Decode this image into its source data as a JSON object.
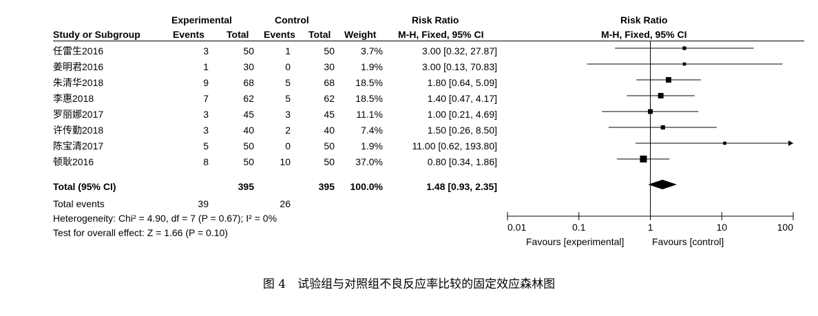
{
  "headers": {
    "experimental": "Experimental",
    "control": "Control",
    "rr_left": "Risk Ratio",
    "rr_right": "Risk Ratio",
    "study": "Study or Subgroup",
    "events_e": "Events",
    "total_e": "Total",
    "events_c": "Events",
    "total_c": "Total",
    "weight": "Weight",
    "method_left": "M-H, Fixed, 95% CI",
    "method_right": "M-H, Fixed, 95% CI"
  },
  "studies": [
    {
      "name": "任雷生2016",
      "ee": "3",
      "te": "50",
      "ec": "1",
      "tc": "50",
      "weight": "3.7%",
      "ci": "3.00 [0.32, 27.87]"
    },
    {
      "name": "姜明君2016",
      "ee": "1",
      "te": "30",
      "ec": "0",
      "tc": "30",
      "weight": "1.9%",
      "ci": "3.00 [0.13, 70.83]"
    },
    {
      "name": "朱清华2018",
      "ee": "9",
      "te": "68",
      "ec": "5",
      "tc": "68",
      "weight": "18.5%",
      "ci": "1.80 [0.64, 5.09]"
    },
    {
      "name": "李惠2018",
      "ee": "7",
      "te": "62",
      "ec": "5",
      "tc": "62",
      "weight": "18.5%",
      "ci": "1.40 [0.47, 4.17]"
    },
    {
      "name": "罗丽娜2017",
      "ee": "3",
      "te": "45",
      "ec": "3",
      "tc": "45",
      "weight": "11.1%",
      "ci": "1.00 [0.21, 4.69]"
    },
    {
      "name": "许传勤2018",
      "ee": "3",
      "te": "40",
      "ec": "2",
      "tc": "40",
      "weight": "7.4%",
      "ci": "1.50 [0.26, 8.50]"
    },
    {
      "name": "陈宝清2017",
      "ee": "5",
      "te": "50",
      "ec": "0",
      "tc": "50",
      "weight": "1.9%",
      "ci": "11.00 [0.62, 193.80]"
    },
    {
      "name": "顿耿2016",
      "ee": "8",
      "te": "50",
      "ec": "10",
      "tc": "50",
      "weight": "37.0%",
      "ci": "0.80 [0.34, 1.86]"
    }
  ],
  "total": {
    "label": "Total (95% CI)",
    "te": "395",
    "tc": "395",
    "weight": "100.0%",
    "ci": "1.48 [0.93, 2.35]"
  },
  "total_events": {
    "label": "Total events",
    "e": "39",
    "c": "26"
  },
  "heterogeneity": "Heterogeneity: Chi² = 4.90, df = 7 (P = 0.67); I² = 0%",
  "overall_effect": "Test for overall effect: Z = 1.66 (P = 0.10)",
  "favours_left": "Favours [experimental]",
  "favours_right": "Favours [control]",
  "caption": "图 4　试验组与对照组不良反应率比较的固定效应森林图",
  "chart_data": {
    "type": "scatter",
    "scale": "log",
    "xlim": [
      0.01,
      100
    ],
    "ticks": [
      0.01,
      0.1,
      1,
      10,
      100
    ],
    "tick_labels": [
      "0.01",
      "0.1",
      "1",
      "10",
      "100"
    ],
    "null_line": 1,
    "points": [
      {
        "label": "任雷生2016",
        "rr": 3.0,
        "lo": 0.32,
        "hi": 27.87,
        "weight": 3.7
      },
      {
        "label": "姜明君2016",
        "rr": 3.0,
        "lo": 0.13,
        "hi": 70.83,
        "weight": 1.9
      },
      {
        "label": "朱清华2018",
        "rr": 1.8,
        "lo": 0.64,
        "hi": 5.09,
        "weight": 18.5
      },
      {
        "label": "李惠2018",
        "rr": 1.4,
        "lo": 0.47,
        "hi": 4.17,
        "weight": 18.5
      },
      {
        "label": "罗丽娜2017",
        "rr": 1.0,
        "lo": 0.21,
        "hi": 4.69,
        "weight": 11.1
      },
      {
        "label": "许传勤2018",
        "rr": 1.5,
        "lo": 0.26,
        "hi": 8.5,
        "weight": 7.4
      },
      {
        "label": "陈宝清2017",
        "rr": 11.0,
        "lo": 0.62,
        "hi": 193.8,
        "weight": 1.9
      },
      {
        "label": "顿耿2016",
        "rr": 0.8,
        "lo": 0.34,
        "hi": 1.86,
        "weight": 37.0
      }
    ],
    "pooled": {
      "rr": 1.48,
      "lo": 0.93,
      "hi": 2.35
    }
  }
}
